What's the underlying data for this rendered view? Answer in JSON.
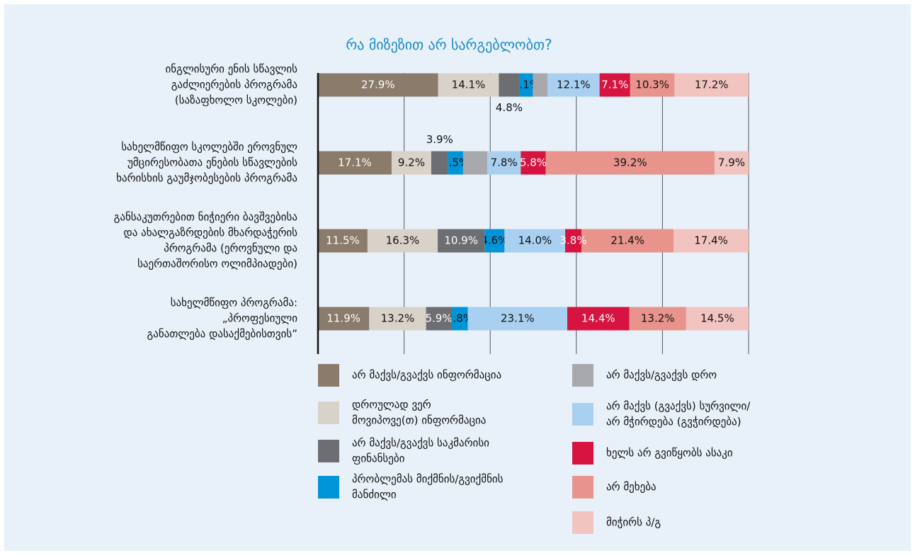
{
  "chart_data": {
    "type": "stacked_barh",
    "title": "რა მიზეზით არ სარგებლობთ?",
    "categories": [
      "ინგლისური ენის სწავლის\nგაძლიერების პროგრამა\n(საზაფხოლო სკოლები)",
      "სახელმწიფო სკოლებში ეროვნულ\nუმცირესობათა ენების სწავლების\nხარისხის გაუმჯობესების პროგრამა",
      "განსაკუთრებით ნიჭიერი ბავშვებისა\nდა ახალგაზრდების მხარდაჭერის\nპროგრამა (ეროვნული და\nსაერთაშორისო ოლიმპიადები)",
      "სახელმწიფო პროგრამა:\n„პროფესიული\nგანათლება დასაქმებისთვის”"
    ],
    "series": [
      {
        "name": "არ მაქვს/გვაქვს ინფორმაცია",
        "color": "#8b7b6b",
        "values": [
          27.9,
          17.1,
          11.5,
          11.9
        ],
        "value_labels": [
          "27.9%",
          "17.1%",
          "11.5%",
          "11.9%"
        ]
      },
      {
        "name": "დროულად ვერ\nმოვიპოვე(თ) ინფორმაცია",
        "color": "#d9d2c8",
        "values": [
          14.1,
          9.2,
          16.3,
          13.2
        ],
        "value_labels": [
          "14.1%",
          "9.2%",
          "16.3%",
          "13.2%"
        ]
      },
      {
        "name": "არ მაქვს/გვაქვს საკმარისი\nფინანსები",
        "color": "#6d6e71",
        "values": [
          4.8,
          3.9,
          10.9,
          5.9
        ],
        "value_labels": [
          "4.8%",
          "3.9%",
          "10.9%",
          "5.9%"
        ]
      },
      {
        "name": "პრობლემას მიქმნის/გვიქმნის\nმანძილი",
        "color": "#0095d9",
        "values": [
          3.1,
          3.5,
          4.6,
          3.8
        ],
        "value_labels": [
          "3.1%",
          "3.5%",
          "4.6%",
          "3.8%"
        ]
      },
      {
        "name": "არ მაქვს/გვაქვს დრო",
        "color": "#a7a9ac",
        "values": [
          3.4,
          5.6,
          0.1,
          0
        ]
      },
      {
        "name": "არ მაქვს (გვაქვს) სურვილი/\nარ მჭირდება (გვჭირდება)",
        "color": "#a9d0f0",
        "values": [
          12.1,
          7.8,
          14.0,
          23.1
        ],
        "value_labels": [
          "12.1%",
          "7.8%",
          "14.0%",
          "23.1%"
        ]
      },
      {
        "name": "ხელს არ გვიწყობს ასაკი",
        "color": "#d7143f",
        "values": [
          7.1,
          5.8,
          3.8,
          14.4
        ],
        "value_labels": [
          "7.1%",
          "5.8%",
          "3.8%",
          "14.4%"
        ]
      },
      {
        "name": "არ მეხება",
        "color": "#e8938c",
        "values": [
          10.3,
          39.2,
          21.4,
          13.2
        ],
        "value_labels": [
          "10.3%",
          "39.2%",
          "21.4%",
          "13.2%"
        ]
      },
      {
        "name": "მიჭირს პ/გ",
        "color": "#f2c4c0",
        "values": [
          17.2,
          7.9,
          17.4,
          14.5
        ],
        "value_labels": [
          "17.2%",
          "7.9%",
          "17.4%",
          "14.5%"
        ]
      }
    ],
    "xlim": [
      0,
      100
    ],
    "xticks": [
      0,
      20,
      40,
      60,
      80,
      100
    ],
    "grid": true
  }
}
